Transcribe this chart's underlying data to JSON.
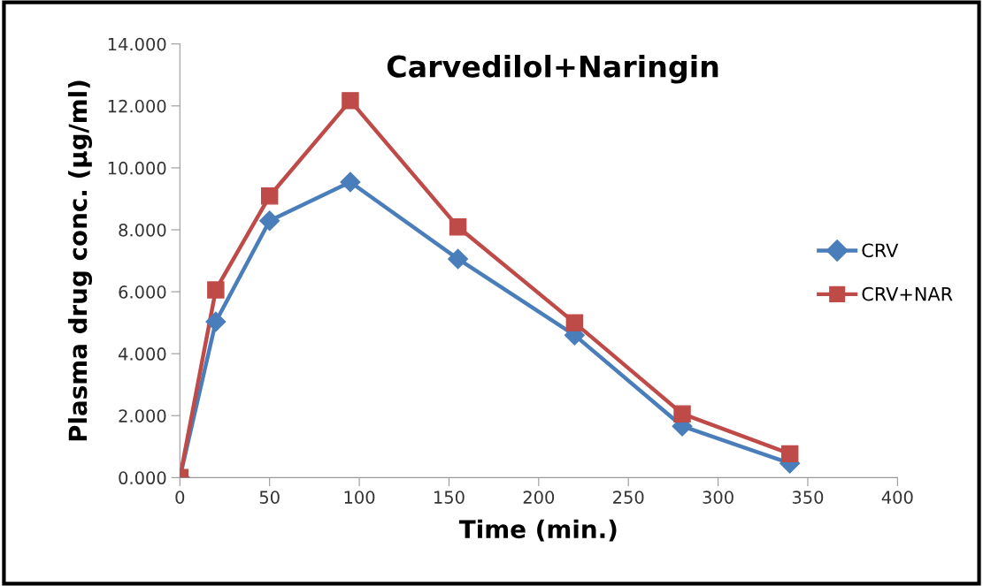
{
  "chart_data": {
    "type": "line",
    "title": "Carvedilol+Naringin",
    "xlabel": "Time (min.)",
    "ylabel": "Plasma drug conc. (µg/ml)",
    "x": [
      0,
      20,
      50,
      95,
      155,
      220,
      280,
      340
    ],
    "series": [
      {
        "name": "CRV",
        "color": "#4a7ebb",
        "marker": "diamond",
        "values": [
          0,
          5.03,
          8.29,
          9.54,
          7.06,
          4.6,
          1.66,
          0.46
        ]
      },
      {
        "name": "CRV+NAR",
        "color": "#be4b48",
        "marker": "square",
        "values": [
          0,
          6.06,
          9.09,
          12.17,
          8.09,
          5.0,
          2.06,
          0.77
        ]
      }
    ],
    "xlim": [
      0,
      400
    ],
    "xticks": [
      0,
      50,
      100,
      150,
      200,
      250,
      300,
      350,
      400
    ],
    "ylim": [
      0,
      14
    ],
    "yticks": [
      {
        "value": 0,
        "label": "0.000"
      },
      {
        "value": 2,
        "label": "2.000"
      },
      {
        "value": 4,
        "label": "4.000"
      },
      {
        "value": 6,
        "label": "6.000"
      },
      {
        "value": 8,
        "label": "8.000"
      },
      {
        "value": 10,
        "label": "10.000"
      },
      {
        "value": 12,
        "label": "12.000"
      },
      {
        "value": 14,
        "label": "14.000"
      }
    ],
    "grid": false,
    "legend": "right",
    "line_style": "solid"
  }
}
